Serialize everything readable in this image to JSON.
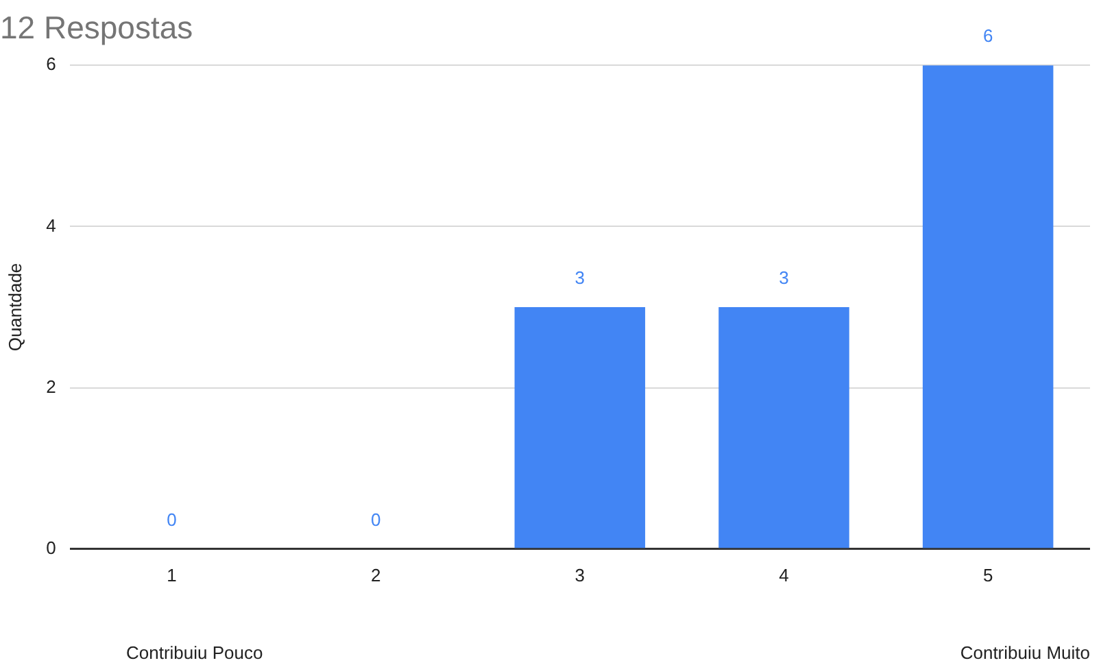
{
  "chart_data": {
    "type": "bar",
    "title": "12 Respostas",
    "ylabel": "Quantdade",
    "categories": [
      "1",
      "2",
      "3",
      "4",
      "5"
    ],
    "values": [
      0,
      0,
      3,
      3,
      6
    ],
    "color": "#4285f4",
    "ylim": [
      0,
      6
    ],
    "yticks": [
      0,
      2,
      4,
      6
    ],
    "grid": "y",
    "legend": false,
    "data_labels": true,
    "annotations": [
      "Contribuiu Pouco",
      "Contribuiu Muito"
    ]
  }
}
